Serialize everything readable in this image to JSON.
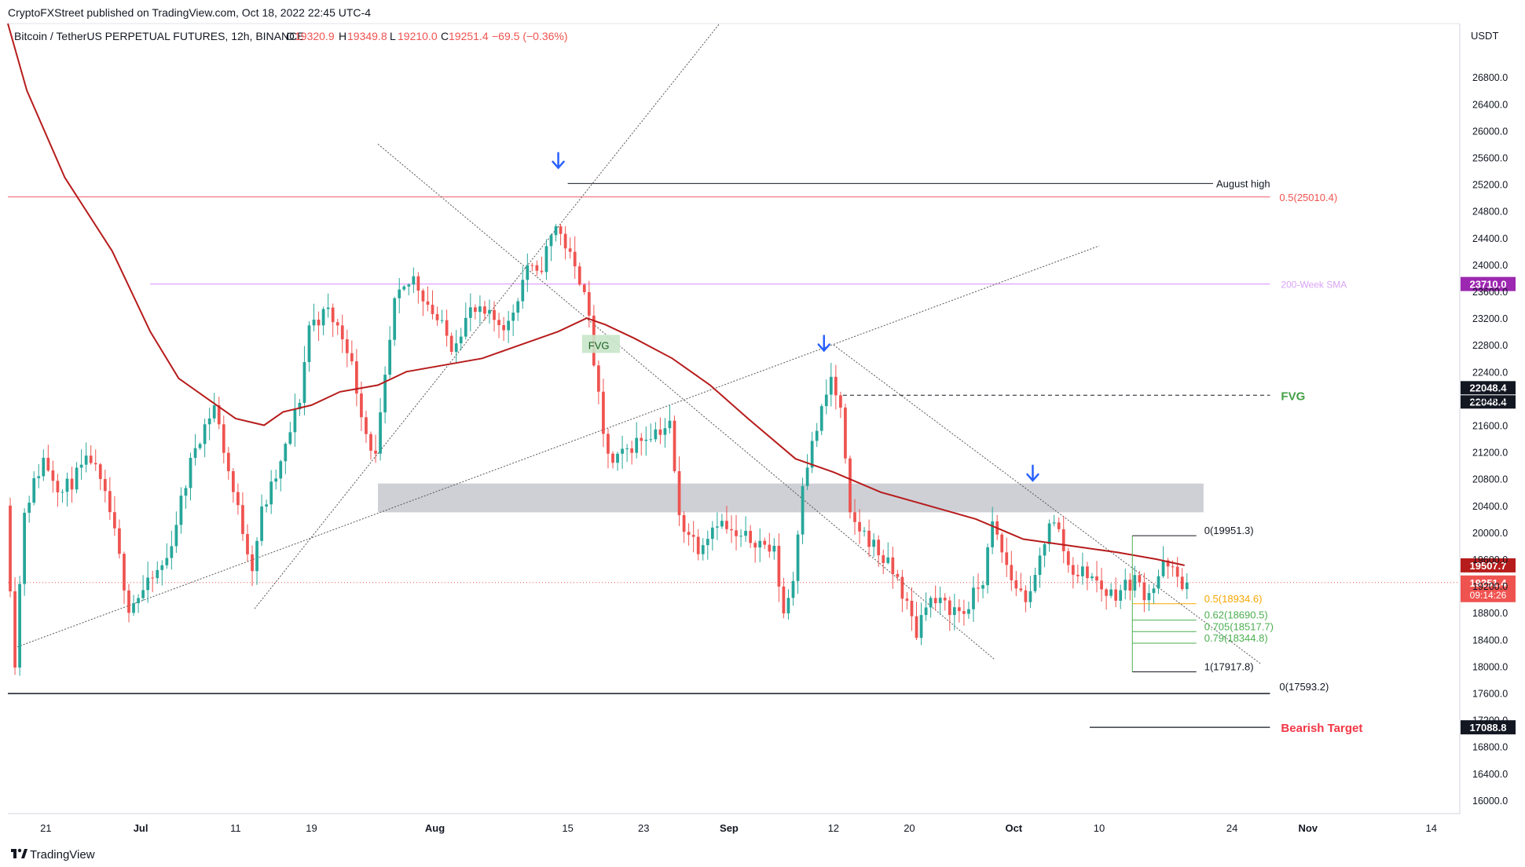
{
  "header": {
    "published_by": "CryptoFXStreet published on TradingView.com, Oct 18, 2022 22:45 UTC-4",
    "symbol": "Bitcoin / TetherUS PERPETUAL FUTURES, 12h, BINANCE",
    "open_label": "O",
    "open": "19320.9",
    "high_label": "H",
    "high": "19349.8",
    "low_label": "L",
    "low": "19210.0",
    "close_label": "C",
    "close": "19251.4",
    "change": "−69.5 (−0.36%)"
  },
  "footer": {
    "brand": "TradingView"
  },
  "colors": {
    "bull": "#26a69a",
    "bear": "#ef5350",
    "ma": "#b71c1c",
    "fib_half": "#f7a600",
    "fib_green": "#4caf50",
    "sma_line": "#e1a0ff",
    "sma_badge": "#9c27b0",
    "arrow": "#2962ff",
    "fvg_text": "#43a047",
    "bearish_text": "#f23645",
    "zone": "#c6c8cf",
    "fib05_line": "#f05a6a"
  },
  "chart_data": {
    "type": "candlestick",
    "title": "",
    "timeframe": "12h",
    "y_axis": {
      "unit": "USDT",
      "range": [
        15800,
        27600
      ],
      "ticks": [
        16000,
        16400,
        16800,
        17200,
        17600,
        18000,
        18400,
        18800,
        19200,
        19600,
        20000,
        20400,
        20800,
        21200,
        21600,
        22000,
        22400,
        22800,
        23200,
        23600,
        24000,
        24400,
        24800,
        25200,
        25600,
        26000,
        26400,
        26800
      ]
    },
    "x_axis": {
      "start_date": "2022-06-17",
      "end_date": "2022-11-17",
      "ticks": [
        {
          "label": "21",
          "date": "2022-06-21"
        },
        {
          "label": "Jul",
          "date": "2022-07-01"
        },
        {
          "label": "11",
          "date": "2022-07-11"
        },
        {
          "label": "19",
          "date": "2022-07-19"
        },
        {
          "label": "Aug",
          "date": "2022-08-01"
        },
        {
          "label": "15",
          "date": "2022-08-15"
        },
        {
          "label": "23",
          "date": "2022-08-23"
        },
        {
          "label": "Sep",
          "date": "2022-09-01"
        },
        {
          "label": "12",
          "date": "2022-09-12"
        },
        {
          "label": "20",
          "date": "2022-09-20"
        },
        {
          "label": "Oct",
          "date": "2022-10-01"
        },
        {
          "label": "10",
          "date": "2022-10-10"
        },
        {
          "label": "24",
          "date": "2022-10-24"
        },
        {
          "label": "Nov",
          "date": "2022-11-01"
        },
        {
          "label": "14",
          "date": "2022-11-14"
        }
      ]
    },
    "price_path": [
      [
        "2022-06-17",
        20400
      ],
      [
        "2022-06-18",
        18100
      ],
      [
        "2022-06-19",
        20350
      ],
      [
        "2022-06-21",
        21100
      ],
      [
        "2022-06-23",
        20600
      ],
      [
        "2022-06-26",
        21100
      ],
      [
        "2022-06-28",
        20300
      ],
      [
        "2022-06-30",
        18900
      ],
      [
        "2022-07-02",
        19200
      ],
      [
        "2022-07-04",
        19600
      ],
      [
        "2022-07-07",
        21300
      ],
      [
        "2022-07-09",
        21900
      ],
      [
        "2022-07-11",
        20600
      ],
      [
        "2022-07-13",
        19500
      ],
      [
        "2022-07-14",
        20300
      ],
      [
        "2022-07-16",
        21000
      ],
      [
        "2022-07-18",
        22000
      ],
      [
        "2022-07-19",
        23100
      ],
      [
        "2022-07-21",
        23300
      ],
      [
        "2022-07-23",
        22800
      ],
      [
        "2022-07-25",
        21500
      ],
      [
        "2022-07-26",
        21100
      ],
      [
        "2022-07-28",
        23400
      ],
      [
        "2022-07-30",
        23800
      ],
      [
        "2022-08-01",
        23300
      ],
      [
        "2022-08-03",
        22800
      ],
      [
        "2022-08-05",
        23300
      ],
      [
        "2022-08-07",
        23200
      ],
      [
        "2022-08-09",
        23100
      ],
      [
        "2022-08-11",
        24000
      ],
      [
        "2022-08-12",
        23800
      ],
      [
        "2022-08-14",
        24600
      ],
      [
        "2022-08-15",
        24300
      ],
      [
        "2022-08-16",
        23900
      ],
      [
        "2022-08-17",
        23700
      ],
      [
        "2022-08-19",
        21400
      ],
      [
        "2022-08-20",
        21000
      ],
      [
        "2022-08-22",
        21300
      ],
      [
        "2022-08-24",
        21500
      ],
      [
        "2022-08-26",
        21600
      ],
      [
        "2022-08-27",
        20200
      ],
      [
        "2022-08-29",
        19800
      ],
      [
        "2022-08-31",
        20200
      ],
      [
        "2022-09-02",
        19900
      ],
      [
        "2022-09-04",
        19900
      ],
      [
        "2022-09-05",
        19800
      ],
      [
        "2022-09-06",
        19700
      ],
      [
        "2022-09-07",
        18800
      ],
      [
        "2022-09-08",
        19300
      ],
      [
        "2022-09-09",
        20800
      ],
      [
        "2022-09-10",
        21300
      ],
      [
        "2022-09-12",
        22300
      ],
      [
        "2022-09-13",
        21800
      ],
      [
        "2022-09-14",
        20200
      ],
      [
        "2022-09-16",
        19900
      ],
      [
        "2022-09-18",
        19500
      ],
      [
        "2022-09-19",
        19300
      ],
      [
        "2022-09-20",
        18900
      ],
      [
        "2022-09-21",
        18500
      ],
      [
        "2022-09-22",
        19000
      ],
      [
        "2022-09-24",
        18900
      ],
      [
        "2022-09-26",
        18800
      ],
      [
        "2022-09-28",
        19300
      ],
      [
        "2022-09-29",
        20100
      ],
      [
        "2022-10-01",
        19300
      ],
      [
        "2022-10-02",
        19100
      ],
      [
        "2022-10-03",
        19000
      ],
      [
        "2022-10-05",
        20200
      ],
      [
        "2022-10-06",
        20000
      ],
      [
        "2022-10-07",
        19500
      ],
      [
        "2022-10-08",
        19400
      ],
      [
        "2022-10-09",
        19400
      ],
      [
        "2022-10-11",
        19100
      ],
      [
        "2022-10-12",
        19100
      ],
      [
        "2022-10-13",
        19200
      ],
      [
        "2022-10-14",
        19300
      ],
      [
        "2022-10-15",
        19100
      ],
      [
        "2022-10-16",
        19200
      ],
      [
        "2022-10-17",
        19500
      ],
      [
        "2022-10-18",
        19400
      ],
      [
        "2022-10-19",
        19251
      ]
    ],
    "moving_average": [
      [
        "2022-06-17",
        27600
      ],
      [
        "2022-06-19",
        26600
      ],
      [
        "2022-06-23",
        25300
      ],
      [
        "2022-06-28",
        24200
      ],
      [
        "2022-07-02",
        23000
      ],
      [
        "2022-07-05",
        22300
      ],
      [
        "2022-07-08",
        22000
      ],
      [
        "2022-07-11",
        21700
      ],
      [
        "2022-07-14",
        21600
      ],
      [
        "2022-07-16",
        21800
      ],
      [
        "2022-07-19",
        21900
      ],
      [
        "2022-07-22",
        22100
      ],
      [
        "2022-07-26",
        22200
      ],
      [
        "2022-07-29",
        22400
      ],
      [
        "2022-08-02",
        22500
      ],
      [
        "2022-08-06",
        22600
      ],
      [
        "2022-08-10",
        22800
      ],
      [
        "2022-08-14",
        23000
      ],
      [
        "2022-08-17",
        23200
      ],
      [
        "2022-08-19",
        23100
      ],
      [
        "2022-08-22",
        22900
      ],
      [
        "2022-08-26",
        22600
      ],
      [
        "2022-08-30",
        22200
      ],
      [
        "2022-09-03",
        21700
      ],
      [
        "2022-09-08",
        21100
      ],
      [
        "2022-09-12",
        20900
      ],
      [
        "2022-09-17",
        20600
      ],
      [
        "2022-09-22",
        20400
      ],
      [
        "2022-09-27",
        20200
      ],
      [
        "2022-10-02",
        19900
      ],
      [
        "2022-10-07",
        19800
      ],
      [
        "2022-10-12",
        19700
      ],
      [
        "2022-10-16",
        19600
      ],
      [
        "2022-10-19",
        19508
      ]
    ],
    "horizontal_levels": [
      {
        "label": "0.5(25010.4)",
        "price": 25010.4,
        "from": "2022-06-17",
        "to": "2022-10-28"
      },
      {
        "label": "August high",
        "price": 25211,
        "from": "2022-08-15",
        "to": "2022-10-22"
      },
      {
        "label": "200-Week SMA",
        "price": 23710,
        "badge": "23710.0",
        "from": "2022-07-02",
        "to": "2022-10-28"
      },
      {
        "label": "FVG",
        "price": 22048.4,
        "badges": [
          "22048.4",
          "22048.4"
        ],
        "from": "2022-09-13",
        "to": "2022-10-28"
      },
      {
        "label": "0(17593.2)",
        "price": 17593.2,
        "from": "2022-06-17",
        "to": "2022-10-28"
      },
      {
        "label": "Bearish Target",
        "price": 17088.8,
        "badge": "17088.8",
        "from": "2022-10-09",
        "to": "2022-10-28"
      }
    ],
    "fib_levels": [
      {
        "label": "0(19951.3)",
        "price": 19951.3
      },
      {
        "label": "0.5(18934.6)",
        "price": 18934.6
      },
      {
        "label": "0.62(18690.5)",
        "price": 18690.5
      },
      {
        "label": "0.705(18517.7)",
        "price": 18517.7
      },
      {
        "label": "0.79(18344.8)",
        "price": 18344.8
      },
      {
        "label": "1(17917.8)",
        "price": 17917.8
      }
    ],
    "current_price": {
      "price": "19251.4",
      "countdown": "09:14:26"
    },
    "ma_badge": "19507.7",
    "zone": {
      "from": "2022-07-26",
      "to": "2022-10-21",
      "low": 20300,
      "high": 20730
    },
    "fvg_box": {
      "label": "FVG",
      "from": "2022-08-17",
      "to": "2022-08-20",
      "low": 22680,
      "high": 22950
    },
    "arrows": [
      {
        "date": "2022-08-14",
        "price": 25550
      },
      {
        "date": "2022-09-11",
        "price": 22820
      },
      {
        "date": "2022-10-03",
        "price": 20880
      }
    ],
    "trendlines": [
      {
        "from": [
          "2022-07-26",
          25800
        ],
        "to": [
          "2022-09-29",
          18100
        ],
        "style": "dotted"
      },
      {
        "from": [
          "2022-07-13",
          18860
        ],
        "to": [
          "2022-08-31",
          27600
        ],
        "style": "dotted"
      },
      {
        "from": [
          "2022-06-18",
          18290
        ],
        "to": [
          "2022-10-10",
          24280
        ],
        "style": "dotted"
      },
      {
        "from": [
          "2022-09-12",
          22800
        ],
        "to": [
          "2022-10-27",
          18040
        ],
        "style": "dotted"
      }
    ]
  }
}
